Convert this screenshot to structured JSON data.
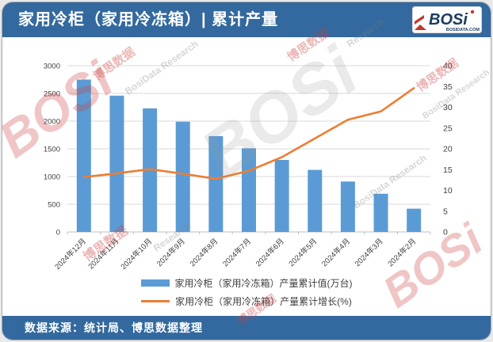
{
  "header": {
    "title": "家用冷柜（家用冷冻箱）| 累计产量",
    "logo": {
      "brand": "BOSi",
      "site": "BOSIDATA.COM"
    }
  },
  "footer": {
    "source": "数据来源：统计局、博思数据整理"
  },
  "watermark": {
    "logo_text": "BOSi",
    "cn_text": "博思数据",
    "en_text": "BosiData Research",
    "short_en_text": "Research"
  },
  "theme": {
    "banner_color": "#33699E",
    "grid_color": "#d9d9d9",
    "axis_color": "#bfbfbf",
    "tick_text_color": "#404040"
  },
  "chart_data": {
    "type": "bar",
    "subtype": "bar+line combo, dual axis",
    "categories": [
      "2024年12月",
      "2024年11月",
      "2024年10月",
      "2024年9月",
      "2024年8月",
      "2024年7月",
      "2024年6月",
      "2024年5月",
      "2024年4月",
      "2024年3月",
      "2024年2月"
    ],
    "series": [
      {
        "name": "家用冷柜（家用冷冻箱）产量累计值(万台)",
        "chart_type": "bar",
        "axis": "left",
        "color": "#5B9BD5",
        "values": [
          2750,
          2460,
          2230,
          1990,
          1730,
          1510,
          1300,
          1120,
          910,
          690,
          420
        ]
      },
      {
        "name": "家用冷柜（家用冷冻箱）产量累计增长(%)",
        "chart_type": "line",
        "axis": "right",
        "color": "#ED7D31",
        "values": [
          13.2,
          14.1,
          15.1,
          14.0,
          12.8,
          14.7,
          18.0,
          22.5,
          27.0,
          29.0,
          34.6
        ]
      }
    ],
    "left_axis": {
      "min": 0,
      "max": 3000,
      "step": 500,
      "ticks": [
        0,
        500,
        1000,
        1500,
        2000,
        2500,
        3000
      ]
    },
    "right_axis": {
      "min": 0,
      "max": 40,
      "step": 5,
      "ticks": [
        0,
        5,
        10,
        15,
        20,
        25,
        30,
        35,
        40
      ]
    },
    "grid": true,
    "legend_position": "bottom",
    "title": "家用冷柜（家用冷冻箱）| 累计产量"
  }
}
